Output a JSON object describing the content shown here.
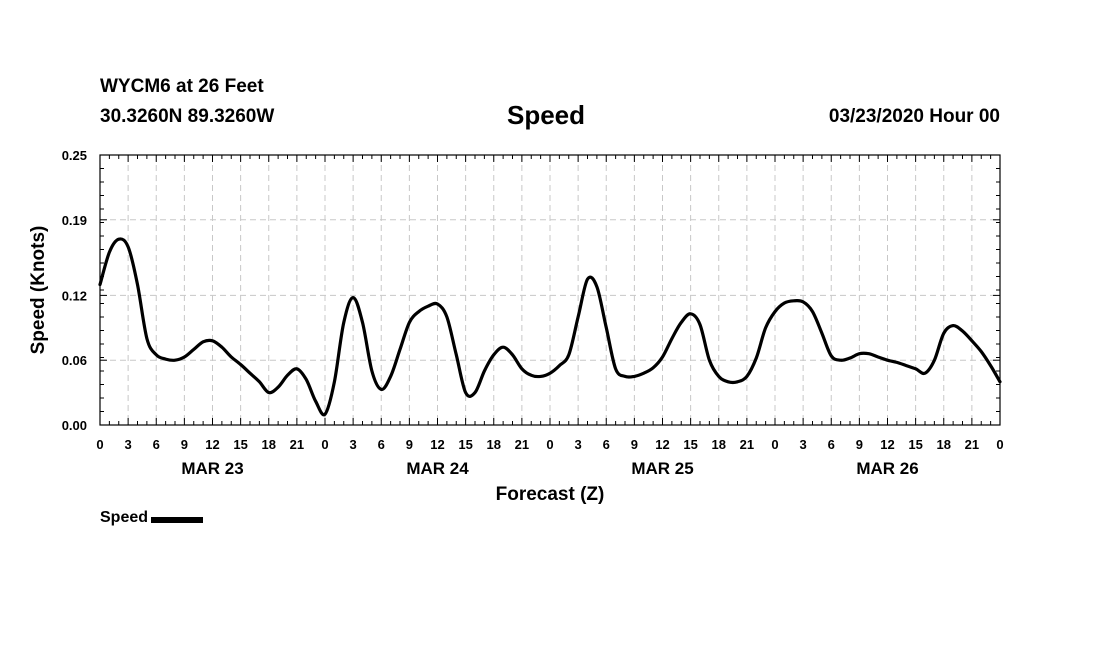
{
  "header": {
    "station": "WYCM6 at 26 Feet",
    "coords": "30.3260N 89.3260W",
    "title": "Speed",
    "forecast_date": "03/23/2020 Hour 00"
  },
  "legend": {
    "label": "Speed",
    "color": "#000000"
  },
  "chart_data": {
    "type": "line",
    "title": "Speed",
    "xlabel": "Forecast (Z)",
    "ylabel": "Speed (Knots)",
    "xlim": [
      0,
      96
    ],
    "ylim": [
      0,
      0.25
    ],
    "yticks": [
      0.0,
      0.06,
      0.12,
      0.19,
      0.25
    ],
    "ytick_labels": [
      "0.00",
      "0.06",
      "0.12",
      "0.19",
      "0.25"
    ],
    "xtick_labels": [
      "0",
      "3",
      "6",
      "9",
      "12",
      "15",
      "18",
      "21",
      "0",
      "3",
      "6",
      "9",
      "12",
      "15",
      "18",
      "21",
      "0",
      "3",
      "6",
      "9",
      "12",
      "15",
      "18",
      "21",
      "0",
      "3",
      "6",
      "9",
      "12",
      "15",
      "18",
      "21",
      "0"
    ],
    "day_labels": [
      {
        "label": "MAR 23",
        "center_hour": 12
      },
      {
        "label": "MAR 24",
        "center_hour": 36
      },
      {
        "label": "MAR 25",
        "center_hour": 60
      },
      {
        "label": "MAR 26",
        "center_hour": 84
      }
    ],
    "grid": true,
    "series": [
      {
        "name": "Speed",
        "color": "#000000",
        "x": [
          0,
          1,
          2,
          3,
          4,
          5,
          6,
          7,
          8,
          9,
          10,
          11,
          12,
          13,
          14,
          15,
          16,
          17,
          18,
          19,
          20,
          21,
          22,
          23,
          24,
          25,
          26,
          27,
          28,
          29,
          30,
          31,
          32,
          33,
          34,
          35,
          36,
          37,
          38,
          39,
          40,
          41,
          42,
          43,
          44,
          45,
          46,
          47,
          48,
          49,
          50,
          51,
          52,
          53,
          54,
          55,
          56,
          57,
          58,
          59,
          60,
          61,
          62,
          63,
          64,
          65,
          66,
          67,
          68,
          69,
          70,
          71,
          72,
          73,
          74,
          75,
          76,
          77,
          78,
          79,
          80,
          81,
          82,
          83,
          84,
          85,
          86,
          87,
          88,
          89,
          90,
          91,
          92,
          93,
          94,
          95,
          96
        ],
        "values": [
          0.13,
          0.16,
          0.172,
          0.165,
          0.13,
          0.08,
          0.065,
          0.061,
          0.06,
          0.063,
          0.07,
          0.077,
          0.078,
          0.072,
          0.063,
          0.056,
          0.048,
          0.04,
          0.03,
          0.035,
          0.046,
          0.052,
          0.042,
          0.022,
          0.01,
          0.04,
          0.095,
          0.118,
          0.095,
          0.05,
          0.033,
          0.045,
          0.07,
          0.095,
          0.105,
          0.11,
          0.112,
          0.1,
          0.065,
          0.03,
          0.03,
          0.05,
          0.065,
          0.072,
          0.065,
          0.052,
          0.046,
          0.045,
          0.048,
          0.055,
          0.065,
          0.1,
          0.135,
          0.128,
          0.09,
          0.052,
          0.045,
          0.045,
          0.048,
          0.053,
          0.063,
          0.08,
          0.095,
          0.103,
          0.093,
          0.06,
          0.045,
          0.04,
          0.04,
          0.045,
          0.062,
          0.09,
          0.105,
          0.113,
          0.115,
          0.114,
          0.105,
          0.085,
          0.064,
          0.06,
          0.062,
          0.066,
          0.066,
          0.063,
          0.06,
          0.058,
          0.055,
          0.052,
          0.048,
          0.06,
          0.085,
          0.092,
          0.087,
          0.078,
          0.068,
          0.055,
          0.04
        ]
      }
    ]
  }
}
